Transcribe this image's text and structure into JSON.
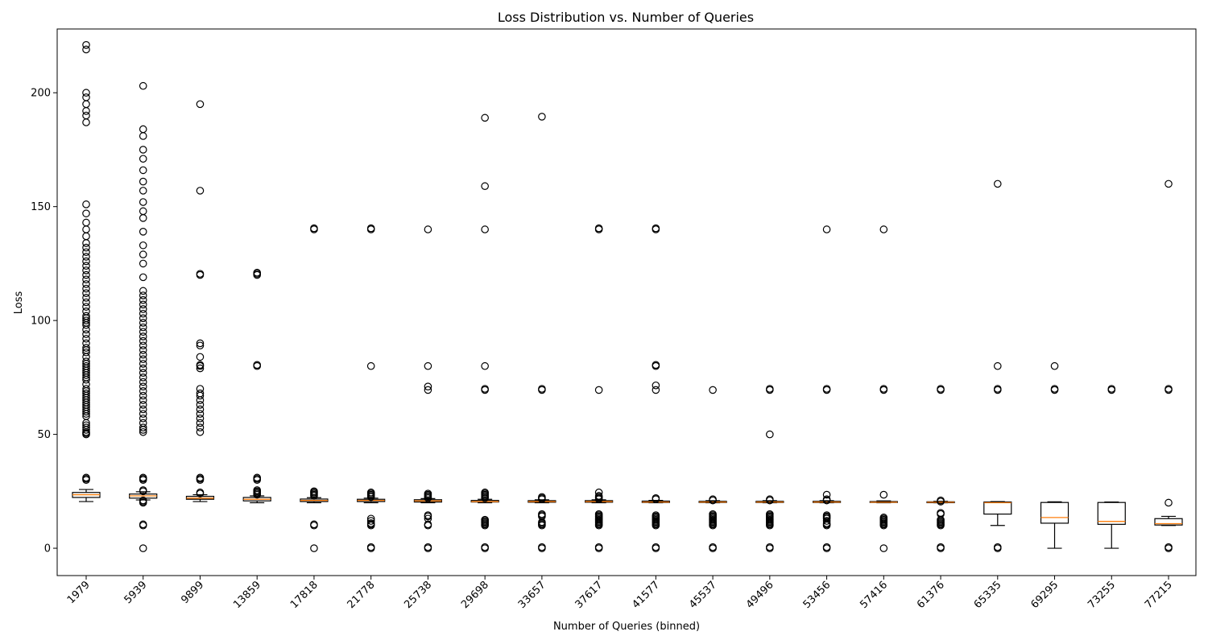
{
  "chart_data": {
    "type": "box",
    "title": "Loss Distribution vs. Number of Queries",
    "xlabel": "Number of Queries (binned)",
    "ylabel": "Loss",
    "ylim": [
      -12,
      228
    ],
    "yticks": [
      0,
      50,
      100,
      150,
      200
    ],
    "grid": false,
    "legend": "none",
    "colors": {
      "box": "#000000",
      "median": "#ff7f0e",
      "background": "#ffffff"
    },
    "categories": [
      "1979",
      "5939",
      "9899",
      "13859",
      "17818",
      "21778",
      "25738",
      "29698",
      "33657",
      "37617",
      "41577",
      "45537",
      "49496",
      "53456",
      "57416",
      "61376",
      "65335",
      "69295",
      "73255",
      "77215"
    ],
    "boxes": [
      {
        "whislo": 20.5,
        "q1": 22.3,
        "med": 23.5,
        "q3": 24.5,
        "whishi": 25.8,
        "fliers": [
          30,
          30.5,
          31,
          50,
          50.5,
          51,
          52,
          53,
          54,
          55,
          58,
          59,
          60,
          61,
          62,
          63,
          64,
          65,
          66,
          67,
          68,
          69,
          70,
          72,
          74,
          75,
          76,
          77,
          78,
          79,
          80,
          81,
          82,
          84,
          86,
          87,
          88,
          90,
          92,
          94,
          96,
          98,
          99,
          100,
          101,
          102,
          104,
          106,
          108,
          110,
          112,
          114,
          116,
          118,
          120,
          122,
          124,
          126,
          128,
          130,
          132,
          134,
          137,
          140,
          143,
          147,
          151,
          187,
          190,
          192,
          195,
          198,
          200,
          219,
          221
        ]
      },
      {
        "whislo": 21.2,
        "q1": 22,
        "med": 23,
        "q3": 23.8,
        "whishi": 24.8,
        "fliers": [
          0,
          10,
          10.5,
          20,
          20.5,
          21,
          25,
          25.5,
          30,
          30.5,
          31,
          51,
          52,
          53,
          55,
          57,
          59,
          61,
          63,
          65,
          67,
          69,
          71,
          73,
          75,
          77,
          79,
          81,
          83,
          85,
          87,
          89,
          91,
          93,
          95,
          97,
          99,
          101,
          103,
          105,
          107,
          109,
          111,
          113,
          119,
          125,
          129,
          133,
          139,
          145,
          148,
          152,
          157,
          161,
          166,
          171,
          175,
          181,
          184,
          203
        ]
      },
      {
        "whislo": 20.5,
        "q1": 21.5,
        "med": 22,
        "q3": 22.8,
        "whishi": 23.5,
        "fliers": [
          24,
          24.5,
          30,
          30.5,
          31,
          51,
          53,
          55,
          57,
          59,
          61,
          63,
          65,
          67,
          68,
          70,
          79,
          80,
          80.5,
          84,
          89,
          90,
          120,
          120.5,
          157,
          195
        ]
      },
      {
        "whislo": 20,
        "q1": 20.8,
        "med": 21.5,
        "q3": 22.3,
        "whishi": 23,
        "fliers": [
          23.5,
          24,
          24.5,
          25,
          25.5,
          30,
          30.5,
          31,
          80,
          80.5,
          120,
          120.5,
          121
        ]
      },
      {
        "whislo": 20,
        "q1": 20.5,
        "med": 21,
        "q3": 21.6,
        "whishi": 22.2,
        "fliers": [
          0,
          10,
          10.5,
          23,
          23.5,
          24,
          24.5,
          25,
          140,
          140.5
        ]
      },
      {
        "whislo": 20,
        "q1": 20.5,
        "med": 21,
        "q3": 21.5,
        "whishi": 22,
        "fliers": [
          0,
          0.5,
          10,
          10.5,
          11,
          12,
          13,
          22.5,
          23,
          23.5,
          24,
          24.5,
          80,
          140,
          140.5
        ]
      },
      {
        "whislo": 20,
        "q1": 20.3,
        "med": 20.8,
        "q3": 21.3,
        "whishi": 21.8,
        "fliers": [
          0,
          0.5,
          10,
          10.5,
          13,
          14,
          14.5,
          22,
          22.5,
          23,
          23.5,
          24,
          69.5,
          71,
          80,
          140
        ]
      },
      {
        "whislo": 20,
        "q1": 20.3,
        "med": 20.5,
        "q3": 21,
        "whishi": 21.5,
        "fliers": [
          0,
          0.5,
          10,
          10.5,
          11,
          11.5,
          12,
          12.5,
          22,
          22.5,
          23,
          23.5,
          24,
          24.5,
          69.5,
          70,
          80,
          140,
          159,
          189
        ]
      },
      {
        "whislo": 20,
        "q1": 20.2,
        "med": 20.5,
        "q3": 20.9,
        "whishi": 21.3,
        "fliers": [
          0,
          0.5,
          10,
          10.5,
          11,
          11.5,
          14,
          14.5,
          15,
          21.5,
          22,
          22.5,
          69.5,
          70,
          189.5
        ]
      },
      {
        "whislo": 20,
        "q1": 20.2,
        "med": 20.5,
        "q3": 20.9,
        "whishi": 21.3,
        "fliers": [
          0,
          0.5,
          10,
          10.5,
          11,
          11.5,
          12,
          12.5,
          13,
          13.5,
          14,
          14.5,
          15,
          21.5,
          22,
          22.5,
          23,
          24.5,
          69.5,
          140,
          140.5
        ]
      },
      {
        "whislo": 20,
        "q1": 20.1,
        "med": 20.3,
        "q3": 20.7,
        "whishi": 21,
        "fliers": [
          0,
          0.5,
          10,
          10.5,
          11,
          11.5,
          12,
          12.5,
          13,
          13.5,
          14,
          14.5,
          21.5,
          22,
          69.5,
          71.5,
          80,
          80.5,
          140,
          140.5
        ]
      },
      {
        "whislo": 20,
        "q1": 20.1,
        "med": 20.3,
        "q3": 20.6,
        "whishi": 20.9,
        "fliers": [
          0,
          0.5,
          10,
          10.5,
          11,
          11.5,
          12,
          12.5,
          13,
          13.5,
          14,
          14.5,
          15,
          21,
          21.5,
          69.5
        ]
      },
      {
        "whislo": 20,
        "q1": 20.1,
        "med": 20.3,
        "q3": 20.6,
        "whishi": 20.9,
        "fliers": [
          0,
          0.5,
          10,
          10.5,
          11,
          11.5,
          12,
          12.5,
          13,
          13.5,
          14,
          14.5,
          15,
          21,
          21.5,
          50,
          69.5,
          70
        ]
      },
      {
        "whislo": 20,
        "q1": 20.1,
        "med": 20.3,
        "q3": 20.6,
        "whishi": 20.9,
        "fliers": [
          0,
          0.5,
          10,
          10.5,
          11,
          12,
          13,
          13.5,
          14,
          14.5,
          21,
          21.5,
          23.5,
          69.5,
          70,
          140
        ]
      },
      {
        "whislo": 20,
        "q1": 20.1,
        "med": 20.2,
        "q3": 20.5,
        "whishi": 20.8,
        "fliers": [
          0,
          10,
          10.5,
          11,
          11.5,
          12,
          12.5,
          13,
          13.5,
          23.5,
          69.5,
          70,
          140
        ]
      },
      {
        "whislo": 20,
        "q1": 20,
        "med": 20.2,
        "q3": 20.4,
        "whishi": 20.6,
        "fliers": [
          0,
          0.5,
          10,
          10.5,
          11,
          11.5,
          12,
          12.5,
          15,
          15.5,
          20.5,
          21,
          69.5,
          70
        ]
      },
      {
        "whislo": 10,
        "q1": 15,
        "med": 20,
        "q3": 20.3,
        "whishi": 20.5,
        "fliers": [
          0,
          0.5,
          69.5,
          70,
          80,
          160
        ]
      },
      {
        "whislo": 0,
        "q1": 11,
        "med": 13.5,
        "q3": 20.1,
        "whishi": 20.4,
        "fliers": [
          69.5,
          70,
          80
        ]
      },
      {
        "whislo": 0,
        "q1": 10.5,
        "med": 11.8,
        "q3": 20.1,
        "whishi": 20.3,
        "fliers": [
          69.5,
          70
        ]
      },
      {
        "whislo": 10,
        "q1": 10.2,
        "med": 10.8,
        "q3": 13,
        "whishi": 14,
        "fliers": [
          0,
          0.5,
          20,
          69.5,
          70,
          160
        ]
      }
    ]
  }
}
